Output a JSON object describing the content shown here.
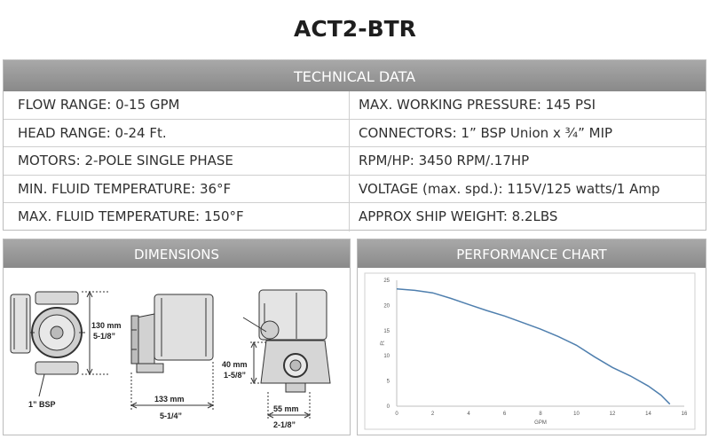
{
  "title": "ACT2-BTR",
  "technical": {
    "header": "TECHNICAL DATA",
    "rows": [
      {
        "left": "FLOW RANGE: 0-15 GPM",
        "right": "MAX. WORKING PRESSURE: 145 PSI"
      },
      {
        "left": "HEAD RANGE: 0-24 Ft.",
        "right": "CONNECTORS: 1” BSP Union x ¾” MIP"
      },
      {
        "left": "MOTORS: 2-POLE SINGLE PHASE",
        "right": "RPM/HP: 3450 RPM/.17HP"
      },
      {
        "left": "MIN. FLUID TEMPERATURE: 36°F",
        "right": "VOLTAGE (max. spd.): 115V/125 watts/1 Amp"
      },
      {
        "left": "MAX. FLUID TEMPERATURE: 150°F",
        "right": "APPROX SHIP WEIGHT: 8.2LBS"
      }
    ]
  },
  "dimensions": {
    "header": "DIMENSIONS",
    "height_mm": "130 mm",
    "height_in": "5-1/8”",
    "length_mm": "133 mm",
    "length_in": "5-1/4”",
    "offset_mm": "40 mm",
    "offset_in": "1-5/8”",
    "depth_mm": "55 mm",
    "depth_in": "2-1/8”",
    "connector": "1” BSP"
  },
  "performance": {
    "header": "PERFORMANCE CHART"
  },
  "chart_data": {
    "type": "line",
    "title": "",
    "xlabel": "GPM",
    "ylabel": "Ft",
    "xlim": [
      0,
      16
    ],
    "ylim": [
      0,
      25
    ],
    "xticks": [
      0,
      2,
      4,
      6,
      8,
      10,
      12,
      14,
      16
    ],
    "yticks": [
      0,
      5,
      10,
      15,
      20,
      25
    ],
    "grid": false,
    "line_color": "#4f7fae",
    "x": [
      0,
      1,
      2,
      3,
      4,
      5,
      6,
      7,
      8,
      9,
      10,
      11,
      12,
      13,
      14,
      14.7,
      15.2
    ],
    "y": [
      23.3,
      23,
      22.5,
      21.4,
      20.2,
      19,
      17.9,
      16.6,
      15.3,
      13.8,
      12.1,
      9.8,
      7.7,
      6,
      4,
      2.2,
      0.4
    ]
  }
}
